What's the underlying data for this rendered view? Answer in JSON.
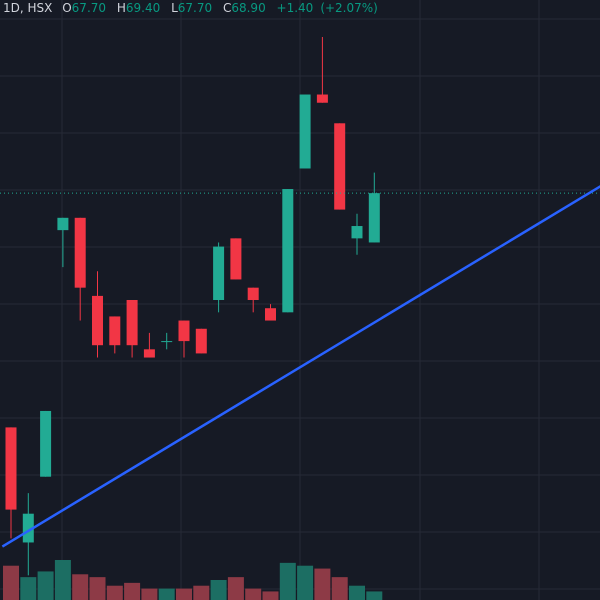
{
  "legend": {
    "interval": "1D",
    "exchange": "HSX",
    "open_label": "O",
    "open": "67.70",
    "high_label": "H",
    "high": "69.40",
    "low_label": "L",
    "low": "67.70",
    "close_label": "C",
    "close": "68.90",
    "change": "+1.40",
    "change_pct": "(+2.07%)"
  },
  "colors": {
    "background": "#161a25",
    "grid": "#262a36",
    "up": "#22ab94",
    "down": "#f23645",
    "up_volume": "#1c6e63",
    "down_volume": "#8d3a46",
    "trendline": "#2962ff",
    "price_line": "#22ab94"
  },
  "chart_data": {
    "type": "candlestick",
    "price_range": [
      59.0,
      73.6
    ],
    "last_price": 68.9,
    "candles": [
      {
        "open": 63.2,
        "high": 63.2,
        "low": 60.5,
        "close": 61.2
      },
      {
        "open": 60.4,
        "high": 61.6,
        "low": 59.6,
        "close": 61.1
      },
      {
        "open": 62.0,
        "high": 63.6,
        "low": 62.0,
        "close": 63.6
      },
      {
        "open": 68.0,
        "high": 68.3,
        "low": 67.1,
        "close": 68.3
      },
      {
        "open": 68.3,
        "high": 68.3,
        "low": 65.8,
        "close": 66.6
      },
      {
        "open": 66.4,
        "high": 67.0,
        "low": 64.9,
        "close": 65.2
      },
      {
        "open": 65.9,
        "high": 65.9,
        "low": 65.0,
        "close": 65.2
      },
      {
        "open": 66.3,
        "high": 66.3,
        "low": 64.9,
        "close": 65.2
      },
      {
        "open": 65.1,
        "high": 65.5,
        "low": 64.9,
        "close": 64.9
      },
      {
        "open": 65.3,
        "high": 65.5,
        "low": 65.1,
        "close": 65.3
      },
      {
        "open": 65.8,
        "high": 65.8,
        "low": 64.9,
        "close": 65.3
      },
      {
        "open": 65.6,
        "high": 65.6,
        "low": 65.0,
        "close": 65.0
      },
      {
        "open": 66.3,
        "high": 67.7,
        "low": 66.0,
        "close": 67.6
      },
      {
        "open": 67.8,
        "high": 67.8,
        "low": 66.8,
        "close": 66.8
      },
      {
        "open": 66.6,
        "high": 66.6,
        "low": 66.0,
        "close": 66.3
      },
      {
        "open": 66.1,
        "high": 66.2,
        "low": 65.8,
        "close": 65.8
      },
      {
        "open": 66.0,
        "high": 69.0,
        "low": 66.0,
        "close": 69.0
      },
      {
        "open": 69.5,
        "high": 71.3,
        "low": 69.5,
        "close": 71.3
      },
      {
        "open": 71.3,
        "high": 72.7,
        "low": 71.1,
        "close": 71.1
      },
      {
        "open": 70.6,
        "high": 70.6,
        "low": 68.5,
        "close": 68.5
      },
      {
        "open": 67.8,
        "high": 68.4,
        "low": 67.4,
        "close": 68.1
      },
      {
        "open": 67.7,
        "high": 69.4,
        "low": 67.7,
        "close": 68.9
      }
    ],
    "volume": [
      60,
      40,
      50,
      70,
      45,
      40,
      25,
      30,
      20,
      20,
      20,
      25,
      35,
      40,
      20,
      15,
      65,
      60,
      55,
      40,
      25,
      15
    ],
    "trendline": {
      "start": {
        "bar": -0.5,
        "price": 60.3
      },
      "end": {
        "bar": 34.6,
        "price": 69.2
      }
    }
  }
}
